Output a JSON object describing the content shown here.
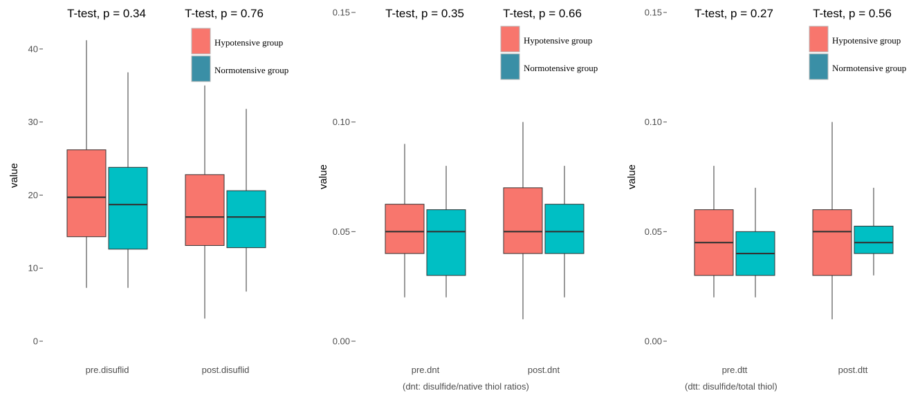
{
  "colors": {
    "hypotensive": "#F8766D",
    "normotensive": "#00BFC4",
    "legend_normotensive": "#3a8fa6",
    "tick": "#4d4d4d"
  },
  "chart_data": [
    {
      "type": "boxplot",
      "ylabel": "value",
      "ylim": [
        0,
        45
      ],
      "yticks": [
        0,
        10,
        20,
        30,
        40
      ],
      "categories": [
        "pre.disuflid",
        "post.disuflid"
      ],
      "annotations": [
        "T-test, p = 0.34",
        "T-test, p = 0.76"
      ],
      "note": "",
      "legend": [
        "Hypotensive group",
        "Normotensive group"
      ],
      "series": [
        {
          "name": "Hypotensive group",
          "boxes": [
            {
              "whisker_low": 7.3,
              "q1": 14.3,
              "median": 19.7,
              "q3": 26.2,
              "whisker_high": 41.2
            },
            {
              "whisker_low": 3.1,
              "q1": 13.1,
              "median": 17.0,
              "q3": 22.8,
              "whisker_high": 35.0
            }
          ]
        },
        {
          "name": "Normotensive group",
          "boxes": [
            {
              "whisker_low": 7.3,
              "q1": 12.6,
              "median": 18.7,
              "q3": 23.8,
              "whisker_high": 36.8
            },
            {
              "whisker_low": 6.8,
              "q1": 12.8,
              "median": 17.0,
              "q3": 20.6,
              "whisker_high": 31.8
            }
          ]
        }
      ]
    },
    {
      "type": "boxplot",
      "ylabel": "value",
      "ylim": [
        0,
        0.15
      ],
      "yticks": [
        0.0,
        0.05,
        0.1,
        0.15
      ],
      "ytick_labels": [
        "0.00",
        "0.05",
        "0.10",
        "0.15"
      ],
      "categories": [
        "pre.dnt",
        "post.dnt"
      ],
      "annotations": [
        "T-test, p = 0.35",
        "T-test, p = 0.66"
      ],
      "note": "(dnt: disulfide/native thiol ratios)",
      "legend": [
        "Hypotensive group",
        "Normotensive group"
      ],
      "series": [
        {
          "name": "Hypotensive group",
          "boxes": [
            {
              "whisker_low": 0.02,
              "q1": 0.04,
              "median": 0.05,
              "q3": 0.0625,
              "whisker_high": 0.09
            },
            {
              "whisker_low": 0.01,
              "q1": 0.04,
              "median": 0.05,
              "q3": 0.07,
              "whisker_high": 0.1
            }
          ]
        },
        {
          "name": "Normotensive group",
          "boxes": [
            {
              "whisker_low": 0.02,
              "q1": 0.03,
              "median": 0.05,
              "q3": 0.06,
              "whisker_high": 0.08
            },
            {
              "whisker_low": 0.02,
              "q1": 0.04,
              "median": 0.05,
              "q3": 0.0625,
              "whisker_high": 0.08
            }
          ]
        }
      ]
    },
    {
      "type": "boxplot",
      "ylabel": "value",
      "ylim": [
        0,
        0.15
      ],
      "yticks": [
        0.0,
        0.05,
        0.1,
        0.15
      ],
      "ytick_labels": [
        "0.00",
        "0.05",
        "0.10",
        "0.15"
      ],
      "categories": [
        "pre.dtt",
        "post.dtt"
      ],
      "annotations": [
        "T-test, p = 0.27",
        "T-test, p = 0.56"
      ],
      "note": "(dtt: disulfide/total thiol)",
      "legend": [
        "Hypotensive group",
        "Normotensive group"
      ],
      "series": [
        {
          "name": "Hypotensive group",
          "boxes": [
            {
              "whisker_low": 0.02,
              "q1": 0.03,
              "median": 0.045,
              "q3": 0.06,
              "whisker_high": 0.08
            },
            {
              "whisker_low": 0.01,
              "q1": 0.03,
              "median": 0.05,
              "q3": 0.06,
              "whisker_high": 0.1
            }
          ]
        },
        {
          "name": "Normotensive group",
          "boxes": [
            {
              "whisker_low": 0.02,
              "q1": 0.03,
              "median": 0.04,
              "q3": 0.05,
              "whisker_high": 0.07
            },
            {
              "whisker_low": 0.03,
              "q1": 0.04,
              "median": 0.045,
              "q3": 0.0525,
              "whisker_high": 0.07
            }
          ]
        }
      ]
    }
  ]
}
